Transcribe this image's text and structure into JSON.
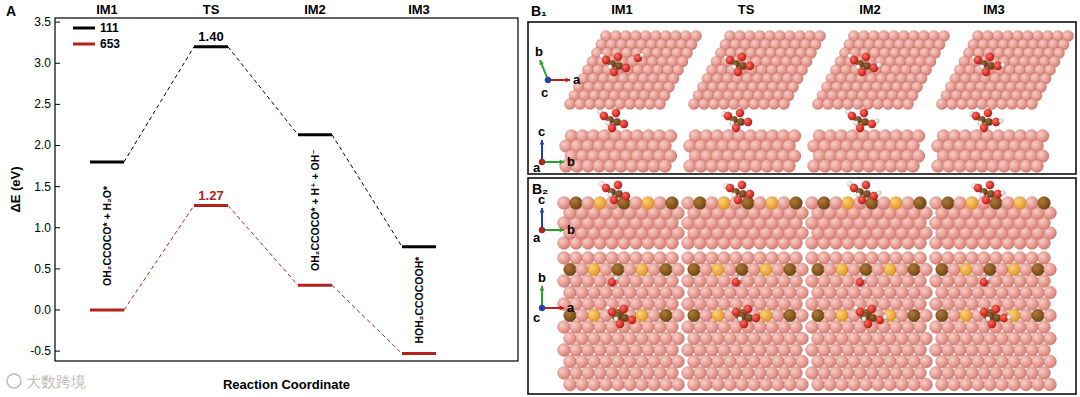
{
  "panel_label": "A",
  "chart_data": {
    "type": "energy_profile",
    "categories": [
      "IM1",
      "TS",
      "IM2",
      "IM3"
    ],
    "series": [
      {
        "name": "111",
        "color": "#000000",
        "values": [
          1.8,
          3.2,
          2.13,
          0.77
        ],
        "line_style": "dashed"
      },
      {
        "name": "653",
        "color": "#b3221c",
        "values": [
          0.0,
          1.27,
          0.3,
          -0.53
        ],
        "line_style": "dashed"
      }
    ],
    "y_label": "ΔE (eV)",
    "x_label": "Reaction Coordinate",
    "ylim": [
      -0.62,
      3.55
    ],
    "yticks": [
      -0.5,
      {
        "value": 0,
        "label": "0.0"
      },
      0.5,
      {
        "value": 1,
        "label": "1.0"
      },
      1.5,
      {
        "value": 2,
        "label": "2.0"
      },
      2.5,
      {
        "value": 3,
        "label": "3.0"
      },
      3.5
    ],
    "legend": "top-left",
    "annotations": [
      {
        "text": "1.40",
        "x": "TS",
        "series": 0
      },
      {
        "text": "1.27",
        "x": "TS",
        "series": 1
      },
      {
        "text": "OH₂CCOCO* + H₂O*",
        "x": "IM1"
      },
      {
        "text": "OH₂CCOCO* + H⁺ + OH⁻",
        "x": "IM2"
      },
      {
        "text": "HOH₂CCOCOOH*",
        "x": "IM3"
      }
    ]
  },
  "panel_b": {
    "subpanels": [
      "B₁",
      "B₂"
    ],
    "columns": [
      "IM1",
      "TS",
      "IM2",
      "IM3"
    ],
    "axis_letters": [
      "a",
      "b",
      "c"
    ]
  },
  "watermark": "大数跨境"
}
